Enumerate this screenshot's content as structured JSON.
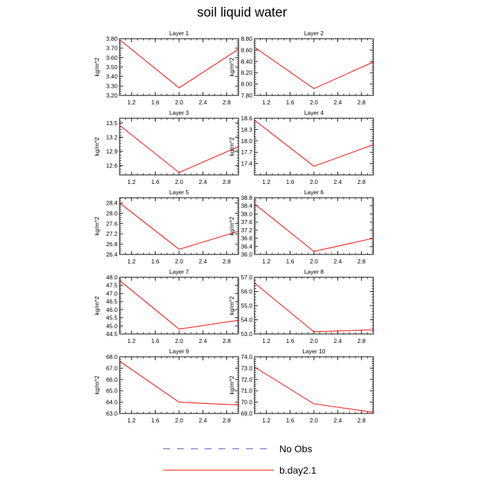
{
  "title": "soil liquid water",
  "ylabel": "kg/m^2",
  "x_ticks": [
    1.2,
    1.6,
    2.0,
    2.4,
    2.8
  ],
  "x_ticklabels": [
    "1.2",
    "1.6",
    "2.0",
    "2.4",
    "2.8"
  ],
  "xlim": [
    1.0,
    3.0
  ],
  "legend": [
    {
      "label": "No Obs",
      "style": "dashed",
      "color": "#4a4aa8"
    },
    {
      "label": "b.day2.1",
      "style": "solid",
      "color": "#ff0000"
    }
  ],
  "chart_data": [
    {
      "type": "line",
      "title": "Layer 1",
      "x": [
        1,
        2,
        3
      ],
      "y": [
        3.79,
        3.28,
        3.69
      ],
      "ylim": [
        3.2,
        3.8
      ],
      "yticklabels": [
        "3.20",
        "3.30",
        "3.40",
        "3.50",
        "3.60",
        "3.70",
        "3.80"
      ],
      "color": "#ff0000"
    },
    {
      "type": "line",
      "title": "Layer 2",
      "x": [
        1,
        2,
        3
      ],
      "y": [
        8.65,
        7.92,
        8.39
      ],
      "ylim": [
        7.8,
        8.8
      ],
      "yticklabels": [
        "7.80",
        "8.00",
        "8.20",
        "8.40",
        "8.60",
        "8.80"
      ],
      "color": "#ff0000"
    },
    {
      "type": "line",
      "title": "Layer 3",
      "x": [
        1,
        2,
        3
      ],
      "y": [
        13.45,
        12.45,
        13.0
      ],
      "ylim": [
        12.4,
        13.6
      ],
      "yticklabels": [
        "12.6",
        "12.9",
        "13.2",
        "13.5"
      ],
      "ytickvalues": [
        12.6,
        12.9,
        13.2,
        13.5
      ],
      "color": "#ff0000"
    },
    {
      "type": "line",
      "title": "Layer 4",
      "x": [
        1,
        2,
        3
      ],
      "y": [
        18.55,
        17.33,
        17.9
      ],
      "ylim": [
        17.1,
        18.6
      ],
      "yticklabels": [
        "17.4",
        "17.7",
        "18.0",
        "18.3",
        "18.6"
      ],
      "ytickvalues": [
        17.4,
        17.7,
        18.0,
        18.3,
        18.6
      ],
      "color": "#ff0000"
    },
    {
      "type": "line",
      "title": "Layer 5",
      "x": [
        1,
        2,
        3
      ],
      "y": [
        28.4,
        26.6,
        27.3
      ],
      "ylim": [
        26.4,
        28.6
      ],
      "yticklabels": [
        "26.4",
        "26.8",
        "27.2",
        "27.6",
        "28.0",
        "28.4"
      ],
      "ytickvalues": [
        26.4,
        26.8,
        27.2,
        27.6,
        28.0,
        28.4
      ],
      "color": "#ff0000"
    },
    {
      "type": "line",
      "title": "Layer 6",
      "x": [
        1,
        2,
        3
      ],
      "y": [
        38.5,
        36.15,
        36.8
      ],
      "ylim": [
        36.0,
        38.8
      ],
      "yticklabels": [
        "36.0",
        "36.4",
        "36.8",
        "37.2",
        "37.6",
        "38.0",
        "38.4",
        "38.8"
      ],
      "ytickvalues": [
        36.0,
        36.4,
        36.8,
        37.2,
        37.6,
        38.0,
        38.4,
        38.8
      ],
      "color": "#ff0000"
    },
    {
      "type": "line",
      "title": "Layer 7",
      "x": [
        1,
        2,
        3
      ],
      "y": [
        47.8,
        44.8,
        45.35
      ],
      "ylim": [
        44.5,
        48.0
      ],
      "yticklabels": [
        "44.5",
        "45.0",
        "45.5",
        "46.0",
        "46.5",
        "47.0",
        "47.5",
        "48.0"
      ],
      "ytickvalues": [
        44.5,
        45.0,
        45.5,
        46.0,
        46.5,
        47.0,
        47.5,
        48.0
      ],
      "color": "#ff0000"
    },
    {
      "type": "line",
      "title": "Layer 8",
      "x": [
        1,
        2,
        3
      ],
      "y": [
        56.6,
        53.15,
        53.3
      ],
      "ylim": [
        53.0,
        57.0
      ],
      "yticklabels": [
        "53.0",
        "54.0",
        "55.0",
        "56.0",
        "57.0"
      ],
      "ytickvalues": [
        53.0,
        54.0,
        55.0,
        56.0,
        57.0
      ],
      "color": "#ff0000"
    },
    {
      "type": "line",
      "title": "Layer 9",
      "x": [
        1,
        2,
        3
      ],
      "y": [
        67.6,
        64.0,
        63.75
      ],
      "ylim": [
        63.0,
        68.0
      ],
      "yticklabels": [
        "63.0",
        "64.0",
        "65.0",
        "66.0",
        "67.0",
        "68.0"
      ],
      "ytickvalues": [
        63.0,
        64.0,
        65.0,
        66.0,
        67.0,
        68.0
      ],
      "color": "#ff0000"
    },
    {
      "type": "line",
      "title": "Layer 10",
      "x": [
        1,
        2,
        3
      ],
      "y": [
        73.1,
        69.85,
        69.1
      ],
      "ylim": [
        69.0,
        74.0
      ],
      "yticklabels": [
        "69.0",
        "70.0",
        "71.0",
        "72.0",
        "73.0",
        "74.0"
      ],
      "ytickvalues": [
        69.0,
        70.0,
        71.0,
        72.0,
        73.0,
        74.0
      ],
      "color": "#ff0000"
    }
  ]
}
